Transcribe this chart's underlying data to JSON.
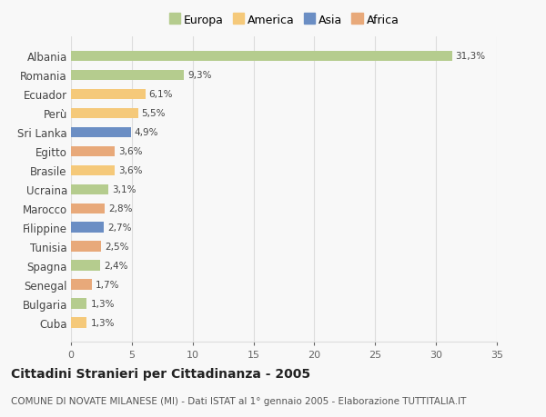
{
  "categories": [
    "Albania",
    "Romania",
    "Ecuador",
    "Perù",
    "Sri Lanka",
    "Egitto",
    "Brasile",
    "Ucraina",
    "Marocco",
    "Filippine",
    "Tunisia",
    "Spagna",
    "Senegal",
    "Bulgaria",
    "Cuba"
  ],
  "values": [
    31.3,
    9.3,
    6.1,
    5.5,
    4.9,
    3.6,
    3.6,
    3.1,
    2.8,
    2.7,
    2.5,
    2.4,
    1.7,
    1.3,
    1.3
  ],
  "labels": [
    "31,3%",
    "9,3%",
    "6,1%",
    "5,5%",
    "4,9%",
    "3,6%",
    "3,6%",
    "3,1%",
    "2,8%",
    "2,7%",
    "2,5%",
    "2,4%",
    "1,7%",
    "1,3%",
    "1,3%"
  ],
  "continents": [
    "Europa",
    "Europa",
    "America",
    "America",
    "Asia",
    "Africa",
    "America",
    "Europa",
    "Africa",
    "Asia",
    "Africa",
    "Europa",
    "Africa",
    "Europa",
    "America"
  ],
  "colors": {
    "Europa": "#b5cc8e",
    "America": "#f5c97a",
    "Asia": "#6b8ec4",
    "Africa": "#e8a97a"
  },
  "legend_order": [
    "Europa",
    "America",
    "Asia",
    "Africa"
  ],
  "xlim": [
    0,
    35
  ],
  "xticks": [
    0,
    5,
    10,
    15,
    20,
    25,
    30,
    35
  ],
  "title": "Cittadini Stranieri per Cittadinanza - 2005",
  "subtitle": "COMUNE DI NOVATE MILANESE (MI) - Dati ISTAT al 1° gennaio 2005 - Elaborazione TUTTITALIA.IT",
  "background_color": "#f8f8f8",
  "grid_color": "#dddddd",
  "label_fontsize": 7.5,
  "ytick_fontsize": 8.5,
  "xtick_fontsize": 8,
  "title_fontsize": 10,
  "subtitle_fontsize": 7.5
}
